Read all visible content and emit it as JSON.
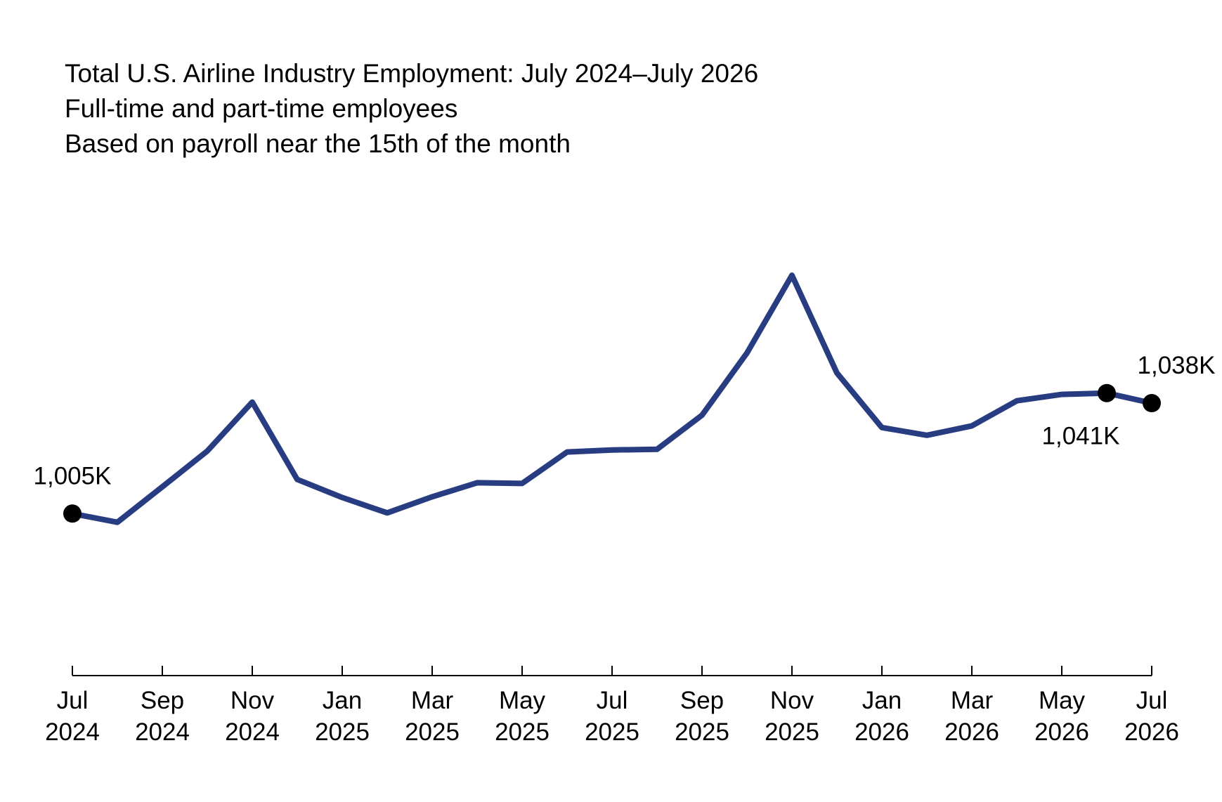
{
  "header": {
    "title": "Total U.S. Airline Industry Employment: July 2024–July 2026",
    "subtitle_1": "Full-time and part-time employees",
    "subtitle_2": "Based on payroll near the 15th of the month"
  },
  "colors": {
    "line": "#283c82",
    "marker": "#000000",
    "axis": "#000000"
  },
  "chart_data": {
    "type": "line",
    "title": "Total U.S. Airline Industry Employment: July 2024–July 2026",
    "subtitle": "Full-time and part-time employees; Based on payroll near the 15th of the month",
    "xlabel": "",
    "ylabel": "",
    "units": "thousands of employees",
    "grid": false,
    "legend": "none",
    "x": [
      "2024-07",
      "2024-08",
      "2024-09",
      "2024-10",
      "2024-11",
      "2024-12",
      "2025-01",
      "2025-02",
      "2025-03",
      "2025-04",
      "2025-05",
      "2025-06",
      "2025-07",
      "2025-08",
      "2025-09",
      "2025-10",
      "2025-11",
      "2025-12",
      "2026-01",
      "2026-02",
      "2026-03",
      "2026-04",
      "2026-05",
      "2026-06",
      "2026-07"
    ],
    "series": [
      {
        "values": [
          1005,
          1002.4,
          1013,
          1023.7,
          1038.3,
          1015.2,
          1009.8,
          1005.2,
          1010,
          1014.2,
          1014,
          1023.4,
          1024,
          1024.2,
          1034.4,
          1053,
          1076.2,
          1047,
          1030.7,
          1028.4,
          1031.2,
          1038.7,
          1040.6,
          1041,
          1038
        ]
      }
    ],
    "ylim": [
      957,
      1106
    ],
    "x_ticks": [
      {
        "index": 0,
        "month": "Jul",
        "year": "2024"
      },
      {
        "index": 2,
        "month": "Sep",
        "year": "2024"
      },
      {
        "index": 4,
        "month": "Nov",
        "year": "2024"
      },
      {
        "index": 6,
        "month": "Jan",
        "year": "2025"
      },
      {
        "index": 8,
        "month": "Mar",
        "year": "2025"
      },
      {
        "index": 10,
        "month": "May",
        "year": "2025"
      },
      {
        "index": 12,
        "month": "Jul",
        "year": "2025"
      },
      {
        "index": 14,
        "month": "Sep",
        "year": "2025"
      },
      {
        "index": 16,
        "month": "Nov",
        "year": "2025"
      },
      {
        "index": 18,
        "month": "Jan",
        "year": "2026"
      },
      {
        "index": 20,
        "month": "Mar",
        "year": "2026"
      },
      {
        "index": 22,
        "month": "May",
        "year": "2026"
      },
      {
        "index": 24,
        "month": "Jul",
        "year": "2026"
      }
    ],
    "annotations": [
      {
        "index": 0,
        "label": "1,005K",
        "placement": "above"
      },
      {
        "index": 23,
        "label": "1,041K",
        "placement": "below"
      },
      {
        "index": 24,
        "label": "1,038K",
        "placement": "above"
      }
    ]
  }
}
